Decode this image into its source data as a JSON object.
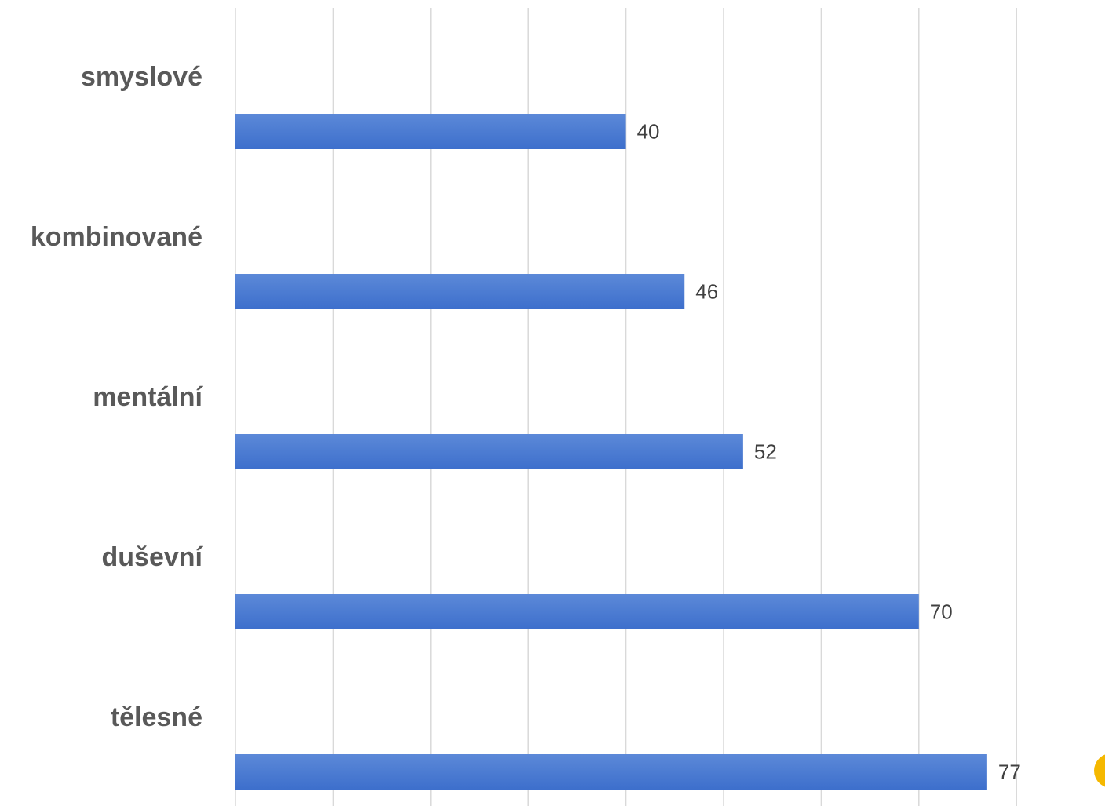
{
  "chart_data": {
    "type": "bar",
    "orientation": "horizontal",
    "categories": [
      "smyslové",
      "kombinované",
      "mentální",
      "duševní",
      "tělesné"
    ],
    "values": [
      40,
      46,
      52,
      70,
      77
    ],
    "title": "",
    "xlabel": "",
    "ylabel": "",
    "xlim": [
      0,
      80
    ],
    "grid": true,
    "legend": "none",
    "bar_color": "#3d6fcc",
    "bar_color_light": "#5c89d8"
  },
  "decor": {
    "corner_mark_color": "#f5b800"
  }
}
